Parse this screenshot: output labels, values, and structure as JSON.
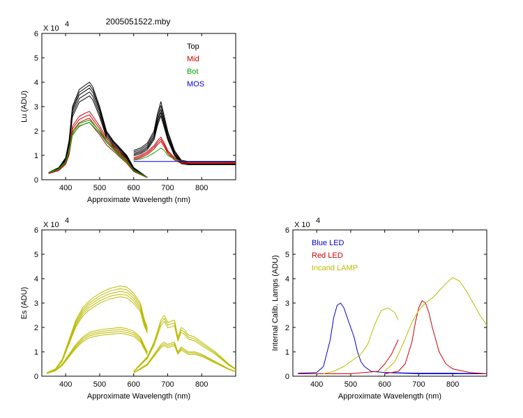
{
  "figure": {
    "title": "2005051522.mby"
  },
  "chart_data": [
    {
      "id": "lu",
      "type": "line",
      "title": "2005051522.mby",
      "xlabel": "Approximate Wavelength (nm)",
      "ylabel": "Lu (ADU)",
      "exponent_label": "X 10",
      "exponent": "4",
      "xlim": [
        330,
        900
      ],
      "ylim": [
        0,
        6
      ],
      "xticks": [
        400,
        500,
        600,
        700,
        800
      ],
      "yticks": [
        0,
        1,
        2,
        3,
        4,
        5,
        6
      ],
      "legend": [
        {
          "name": "Top",
          "color": "#000000"
        },
        {
          "name": "Mid",
          "color": "#cc0000"
        },
        {
          "name": "Bot",
          "color": "#00aa00"
        },
        {
          "name": "MOS",
          "color": "#0000cc"
        }
      ],
      "series": [
        {
          "name": "Top",
          "color": "#000000",
          "segments": [
            {
              "x": [
                350,
                380,
                400,
                410,
                420,
                440,
                460,
                470,
                480,
                500,
                520,
                540,
                560,
                580,
                600,
                640
              ],
              "copies": [
                1.0,
                0.97,
                0.94,
                0.9,
                0.86
              ],
              "y": [
                0.3,
                0.5,
                0.9,
                1.6,
                3.0,
                3.7,
                3.9,
                4.0,
                3.8,
                3.0,
                2.0,
                1.6,
                1.3,
                1.0,
                0.5,
                0.1
              ]
            },
            {
              "x": [
                600,
                620,
                640,
                660,
                670,
                680,
                690,
                700,
                720,
                740,
                760,
                800,
                900
              ],
              "copies": [
                1.0,
                0.95,
                0.9,
                0.86,
                0.82
              ],
              "y": [
                1.2,
                1.3,
                1.5,
                2.0,
                2.7,
                3.2,
                2.6,
                2.0,
                1.2,
                0.8,
                0.75,
                0.75,
                0.75
              ]
            }
          ]
        },
        {
          "name": "Mid",
          "color": "#cc0000",
          "segments": [
            {
              "x": [
                350,
                380,
                400,
                410,
                420,
                440,
                460,
                470,
                480,
                500,
                520,
                540,
                560,
                580,
                600,
                640
              ],
              "copies": [
                1.0,
                0.95,
                0.9,
                0.84
              ],
              "y": [
                0.3,
                0.45,
                0.75,
                1.2,
                2.2,
                2.6,
                2.75,
                2.8,
                2.6,
                2.2,
                1.7,
                1.4,
                1.1,
                0.8,
                0.4,
                0.1
              ]
            },
            {
              "x": [
                600,
                620,
                640,
                660,
                670,
                680,
                690,
                700,
                720,
                740,
                760,
                800,
                900
              ],
              "copies": [
                1.0,
                0.95,
                0.9
              ],
              "y": [
                0.9,
                1.0,
                1.15,
                1.4,
                1.6,
                1.75,
                1.5,
                1.2,
                0.9,
                0.75,
                0.75,
                0.75,
                0.75
              ]
            }
          ]
        },
        {
          "name": "Bot",
          "color": "#00aa00",
          "segments": [
            {
              "x": [
                350,
                380,
                400,
                410,
                420,
                440,
                460,
                470,
                480,
                500,
                520,
                540,
                560,
                580,
                600,
                640
              ],
              "copies": [
                1.0,
                0.96
              ],
              "y": [
                0.3,
                0.45,
                0.75,
                1.2,
                1.9,
                2.3,
                2.4,
                2.45,
                2.3,
                2.0,
                1.6,
                1.3,
                1.0,
                0.75,
                0.4,
                0.1
              ]
            },
            {
              "x": [
                600,
                620,
                640,
                660,
                670,
                680,
                690,
                700,
                720,
                740,
                760,
                800,
                900
              ],
              "copies": [
                1.0
              ],
              "y": [
                0.8,
                0.85,
                0.95,
                1.1,
                1.2,
                1.3,
                1.2,
                1.0,
                0.85,
                0.75,
                0.75,
                0.75,
                0.75
              ]
            }
          ]
        },
        {
          "name": "MOS",
          "color": "#0000cc",
          "segments": [
            {
              "x": [
                600,
                650,
                700,
                750,
                800,
                900
              ],
              "copies": [
                1.0
              ],
              "y": [
                0.75,
                0.75,
                0.75,
                0.75,
                0.75,
                0.75
              ]
            }
          ]
        }
      ]
    },
    {
      "id": "es",
      "type": "line",
      "title": "",
      "xlabel": "Approximate Wavelength (nm)",
      "ylabel": "Es (ADU)",
      "exponent_label": "X 10",
      "exponent": "4",
      "xlim": [
        330,
        900
      ],
      "ylim": [
        0,
        6
      ],
      "xticks": [
        400,
        500,
        600,
        700,
        800
      ],
      "yticks": [
        0,
        1,
        2,
        3,
        4,
        5,
        6
      ],
      "legend": [],
      "series": [
        {
          "name": "",
          "color": "#bbbb00",
          "segments": [
            {
              "x": [
                345,
                370,
                390,
                410,
                430,
                450,
                470,
                500,
                530,
                560,
                580,
                600,
                620,
                630,
                640
              ],
              "copies": [
                1.0,
                0.97,
                0.94,
                0.91,
                0.88
              ],
              "y": [
                0.15,
                0.3,
                0.7,
                1.5,
                2.3,
                2.8,
                3.1,
                3.4,
                3.6,
                3.7,
                3.65,
                3.4,
                3.0,
                2.4,
                2.0
              ]
            },
            {
              "x": [
                345,
                370,
                390,
                410,
                430,
                450,
                470,
                500,
                530,
                560,
                580,
                600,
                620,
                630,
                640
              ],
              "copies": [
                1.0,
                0.96,
                0.92,
                0.88
              ],
              "y": [
                0.12,
                0.25,
                0.5,
                0.9,
                1.3,
                1.6,
                1.8,
                1.9,
                1.95,
                2.0,
                1.95,
                1.85,
                1.6,
                1.3,
                1.0
              ]
            },
            {
              "x": [
                600,
                640,
                660,
                680,
                690,
                700,
                720,
                730,
                740,
                750,
                760,
                780,
                800,
                840,
                880,
                900
              ],
              "copies": [
                1.0,
                0.95,
                0.9
              ],
              "y": [
                0.2,
                0.8,
                1.4,
                2.3,
                2.5,
                2.2,
                2.3,
                1.6,
                2.0,
                1.9,
                1.7,
                1.6,
                1.4,
                1.0,
                0.5,
                0.3
              ]
            },
            {
              "x": [
                600,
                640,
                660,
                680,
                690,
                700,
                720,
                730,
                740,
                750,
                760,
                780,
                800,
                840,
                880,
                900
              ],
              "copies": [
                1.0,
                0.95,
                0.9
              ],
              "y": [
                0.15,
                0.5,
                0.9,
                1.3,
                1.4,
                1.3,
                1.4,
                1.0,
                1.2,
                1.1,
                1.0,
                1.0,
                0.9,
                0.6,
                0.3,
                0.2
              ]
            }
          ]
        }
      ]
    },
    {
      "id": "lamps",
      "type": "line",
      "title": "",
      "xlabel": "Approximate Wavelength (nm)",
      "ylabel": "Internal Calib. Lamps (ADU)",
      "exponent_label": "X 10",
      "exponent": "4",
      "xlim": [
        330,
        900
      ],
      "ylim": [
        0,
        6
      ],
      "xticks": [
        400,
        500,
        600,
        700,
        800
      ],
      "yticks": [
        0,
        1,
        2,
        3,
        4,
        5,
        6
      ],
      "legend": [
        {
          "name": "Blue LED",
          "color": "#0000cc"
        },
        {
          "name": "Red LED",
          "color": "#cc0000"
        },
        {
          "name": "Incand LAMP",
          "color": "#bbbb00"
        }
      ],
      "series": [
        {
          "name": "Blue LED",
          "color": "#0000cc",
          "segments": [
            {
              "x": [
                345,
                400,
                420,
                440,
                450,
                460,
                470,
                480,
                490,
                500,
                510,
                520,
                530,
                540,
                560,
                600,
                700,
                900
              ],
              "copies": [
                1.0
              ],
              "y": [
                0.12,
                0.15,
                0.4,
                1.5,
                2.4,
                2.9,
                3.0,
                2.8,
                2.4,
                2.0,
                1.6,
                1.0,
                0.6,
                0.4,
                0.2,
                0.15,
                0.1,
                0.1
              ]
            },
            {
              "x": [
                600,
                700,
                800,
                900
              ],
              "copies": [
                1.0
              ],
              "y": [
                0.15,
                0.12,
                0.12,
                0.1
              ]
            }
          ]
        },
        {
          "name": "Red LED",
          "color": "#cc0000",
          "segments": [
            {
              "x": [
                345,
                500,
                580,
                600,
                620,
                640
              ],
              "copies": [
                1.0
              ],
              "y": [
                0.1,
                0.1,
                0.2,
                0.5,
                0.9,
                1.5
              ]
            },
            {
              "x": [
                600,
                640,
                660,
                680,
                690,
                700,
                710,
                720,
                730,
                740,
                760,
                780,
                800,
                850,
                900
              ],
              "copies": [
                1.0
              ],
              "y": [
                0.1,
                0.2,
                0.5,
                1.4,
                2.2,
                2.8,
                3.1,
                3.0,
                2.6,
                2.0,
                1.0,
                0.5,
                0.3,
                0.15,
                0.1
              ]
            }
          ]
        },
        {
          "name": "Incand LAMP",
          "color": "#bbbb00",
          "segments": [
            {
              "x": [
                420,
                450,
                480,
                510,
                530,
                550,
                570,
                590,
                610,
                630,
                640
              ],
              "copies": [
                1.0
              ],
              "y": [
                0.1,
                0.2,
                0.4,
                0.7,
                0.9,
                1.3,
                2.1,
                2.7,
                2.8,
                2.6,
                2.3
              ]
            },
            {
              "x": [
                600,
                630,
                650,
                680,
                700,
                720,
                740,
                760,
                780,
                800,
                820,
                840,
                860,
                880,
                900
              ],
              "copies": [
                1.0
              ],
              "y": [
                0.2,
                0.6,
                1.2,
                2.2,
                2.7,
                3.0,
                3.2,
                3.5,
                3.8,
                4.05,
                3.9,
                3.5,
                3.0,
                2.5,
                2.1
              ]
            }
          ]
        }
      ]
    }
  ]
}
